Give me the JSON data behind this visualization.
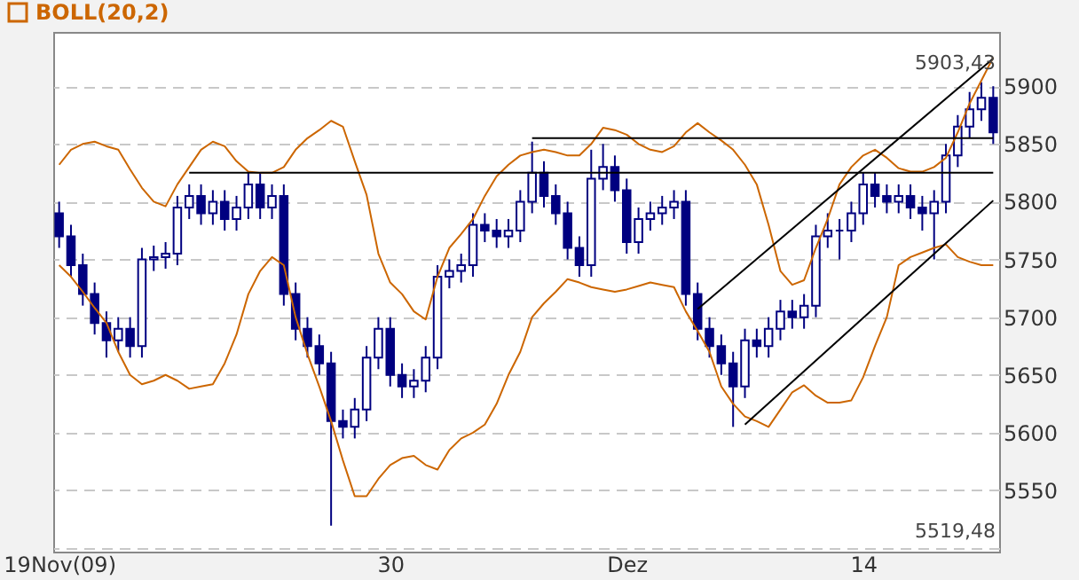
{
  "chart_data": {
    "type": "candlestick",
    "color": "#000080",
    "categories": [
      "19Nov(09)",
      null,
      null,
      null,
      null,
      null,
      null,
      null,
      null,
      null,
      null,
      null,
      null,
      null,
      null,
      null,
      null,
      null,
      null,
      null,
      null,
      null,
      null,
      null,
      null,
      null,
      null,
      null,
      "30",
      null,
      null,
      null,
      null,
      null,
      null,
      null,
      null,
      null,
      null,
      null,
      null,
      null,
      null,
      null,
      null,
      null,
      null,
      null,
      "Dez",
      null,
      null,
      null,
      null,
      null,
      null,
      null,
      null,
      null,
      null,
      null,
      null,
      null,
      null,
      null,
      null,
      null,
      null,
      null,
      "14",
      null,
      null,
      null,
      null,
      null,
      null,
      null,
      null,
      null,
      null,
      null
    ],
    "ohlc": [
      [
        5790,
        5800,
        5760,
        5770
      ],
      [
        5770,
        5780,
        5735,
        5745
      ],
      [
        5745,
        5755,
        5710,
        5720
      ],
      [
        5720,
        5730,
        5685,
        5695
      ],
      [
        5695,
        5705,
        5665,
        5680
      ],
      [
        5680,
        5700,
        5670,
        5690
      ],
      [
        5690,
        5700,
        5665,
        5675
      ],
      [
        5675,
        5760,
        5665,
        5750
      ],
      [
        5750,
        5762,
        5740,
        5752
      ],
      [
        5752,
        5765,
        5742,
        5755
      ],
      [
        5755,
        5805,
        5745,
        5795
      ],
      [
        5795,
        5815,
        5785,
        5805
      ],
      [
        5805,
        5815,
        5780,
        5790
      ],
      [
        5790,
        5810,
        5780,
        5800
      ],
      [
        5800,
        5810,
        5775,
        5785
      ],
      [
        5785,
        5805,
        5775,
        5795
      ],
      [
        5795,
        5826,
        5785,
        5815
      ],
      [
        5815,
        5825,
        5785,
        5795
      ],
      [
        5795,
        5815,
        5785,
        5805
      ],
      [
        5805,
        5815,
        5710,
        5720
      ],
      [
        5720,
        5730,
        5680,
        5690
      ],
      [
        5690,
        5700,
        5665,
        5675
      ],
      [
        5675,
        5685,
        5650,
        5660
      ],
      [
        5660,
        5670,
        5519.48,
        5610
      ],
      [
        5610,
        5620,
        5595,
        5605
      ],
      [
        5605,
        5630,
        5595,
        5620
      ],
      [
        5620,
        5675,
        5610,
        5665
      ],
      [
        5665,
        5700,
        5655,
        5690
      ],
      [
        5690,
        5700,
        5640,
        5650
      ],
      [
        5650,
        5660,
        5630,
        5640
      ],
      [
        5640,
        5655,
        5630,
        5645
      ],
      [
        5645,
        5675,
        5635,
        5665
      ],
      [
        5665,
        5745,
        5655,
        5735
      ],
      [
        5735,
        5750,
        5725,
        5740
      ],
      [
        5740,
        5755,
        5730,
        5745
      ],
      [
        5745,
        5790,
        5735,
        5780
      ],
      [
        5780,
        5790,
        5765,
        5775
      ],
      [
        5775,
        5785,
        5760,
        5770
      ],
      [
        5770,
        5785,
        5760,
        5775
      ],
      [
        5775,
        5810,
        5765,
        5800
      ],
      [
        5800,
        5852,
        5790,
        5825
      ],
      [
        5825,
        5835,
        5795,
        5805
      ],
      [
        5805,
        5815,
        5780,
        5790
      ],
      [
        5790,
        5800,
        5750,
        5760
      ],
      [
        5760,
        5770,
        5735,
        5745
      ],
      [
        5745,
        5845,
        5735,
        5820
      ],
      [
        5820,
        5850,
        5810,
        5830
      ],
      [
        5830,
        5840,
        5800,
        5810
      ],
      [
        5810,
        5820,
        5755,
        5765
      ],
      [
        5765,
        5795,
        5755,
        5785
      ],
      [
        5785,
        5800,
        5775,
        5790
      ],
      [
        5790,
        5805,
        5780,
        5795
      ],
      [
        5795,
        5810,
        5785,
        5800
      ],
      [
        5800,
        5810,
        5710,
        5720
      ],
      [
        5720,
        5730,
        5680,
        5690
      ],
      [
        5690,
        5700,
        5665,
        5675
      ],
      [
        5675,
        5685,
        5650,
        5660
      ],
      [
        5660,
        5670,
        5605,
        5640
      ],
      [
        5640,
        5690,
        5630,
        5680
      ],
      [
        5680,
        5690,
        5665,
        5675
      ],
      [
        5675,
        5700,
        5665,
        5690
      ],
      [
        5690,
        5715,
        5680,
        5705
      ],
      [
        5705,
        5715,
        5690,
        5700
      ],
      [
        5700,
        5720,
        5690,
        5710
      ],
      [
        5710,
        5780,
        5700,
        5770
      ],
      [
        5770,
        5790,
        5760,
        5775
      ],
      [
        5775,
        5785,
        5750,
        5775
      ],
      [
        5775,
        5800,
        5765,
        5790
      ],
      [
        5790,
        5825,
        5780,
        5815
      ],
      [
        5815,
        5825,
        5795,
        5805
      ],
      [
        5805,
        5815,
        5790,
        5800
      ],
      [
        5800,
        5815,
        5790,
        5805
      ],
      [
        5805,
        5815,
        5785,
        5795
      ],
      [
        5795,
        5805,
        5775,
        5790
      ],
      [
        5790,
        5810,
        5750,
        5800
      ],
      [
        5800,
        5850,
        5790,
        5840
      ],
      [
        5840,
        5875,
        5830,
        5865
      ],
      [
        5865,
        5895,
        5855,
        5880
      ],
      [
        5880,
        5903.43,
        5870,
        5890
      ],
      [
        5890,
        5900,
        5850,
        5860
      ]
    ],
    "series": [
      {
        "name": "BOLL(20,2)",
        "type": "line",
        "color": "#cc6600",
        "values": [
          5832,
          5845,
          5850,
          5852,
          5848,
          5845,
          5828,
          5812,
          5800,
          5796,
          5815,
          5830,
          5845,
          5852,
          5848,
          5835,
          5826,
          5825,
          5825,
          5830,
          5845,
          5855,
          5862,
          5870,
          5865,
          5835,
          5806,
          5755,
          5730,
          5720,
          5705,
          5698,
          5735,
          5760,
          5772,
          5785,
          5805,
          5822,
          5832,
          5840,
          5843,
          5845,
          5843,
          5840,
          5840,
          5850,
          5864,
          5862,
          5858,
          5850,
          5845,
          5843,
          5848,
          5860,
          5868,
          5860,
          5853,
          5845,
          5832,
          5815,
          5780,
          5740,
          5728,
          5732,
          5760,
          5785,
          5815,
          5830,
          5840,
          5845,
          5838,
          5829,
          5826,
          5826,
          5830,
          5838,
          5860,
          5885,
          5905,
          5925
        ]
      },
      {
        "type": "line",
        "color": "#cc6600",
        "values": [
          5745,
          5735,
          5722,
          5708,
          5695,
          5670,
          5650,
          5642,
          5645,
          5650,
          5645,
          5638,
          5640,
          5642,
          5660,
          5685,
          5720,
          5740,
          5752,
          5745,
          5700,
          5668,
          5640,
          5610,
          5576,
          5545,
          5545,
          5560,
          5572,
          5578,
          5580,
          5572,
          5568,
          5585,
          5595,
          5600,
          5607,
          5625,
          5650,
          5670,
          5700,
          5712,
          5722,
          5733,
          5730,
          5726,
          5724,
          5722,
          5724,
          5727,
          5730,
          5728,
          5726,
          5705,
          5688,
          5670,
          5640,
          5625,
          5614,
          5610,
          5605,
          5620,
          5635,
          5641,
          5632,
          5626,
          5626,
          5628,
          5648,
          5675,
          5700,
          5745,
          5752,
          5756,
          5760,
          5763,
          5752,
          5748,
          5745,
          5745
        ]
      },
      {
        "type": "line",
        "color": "#000000",
        "values": [
          null,
          null,
          null,
          null,
          null,
          null,
          null,
          null,
          null,
          null,
          null,
          5825,
          null,
          null,
          null,
          null,
          null,
          null,
          null,
          null,
          null,
          null,
          null,
          null,
          null,
          null,
          null,
          null,
          null,
          null,
          null,
          null,
          null,
          null,
          null,
          null,
          null,
          null,
          null,
          null,
          null,
          null,
          null,
          null,
          null,
          null,
          null,
          null,
          null,
          null,
          null,
          null,
          null,
          null,
          null,
          null,
          null,
          null,
          null,
          null,
          null,
          null,
          null,
          null,
          null,
          null,
          null,
          null,
          null,
          null,
          null,
          null,
          null,
          null,
          null,
          null,
          null,
          null,
          null,
          5825
        ]
      },
      {
        "type": "line",
        "color": "#000000",
        "values": [
          null,
          null,
          null,
          null,
          null,
          null,
          null,
          null,
          null,
          null,
          null,
          null,
          null,
          null,
          null,
          null,
          null,
          null,
          null,
          null,
          null,
          null,
          null,
          null,
          null,
          null,
          null,
          null,
          null,
          null,
          null,
          null,
          null,
          null,
          null,
          null,
          null,
          null,
          null,
          null,
          5855,
          null,
          null,
          null,
          null,
          null,
          null,
          null,
          null,
          null,
          null,
          null,
          null,
          null,
          null,
          null,
          null,
          null,
          null,
          null,
          null,
          null,
          null,
          null,
          null,
          null,
          null,
          null,
          null,
          null,
          null,
          null,
          null,
          null,
          null,
          null,
          null,
          null,
          null,
          5855
        ]
      },
      {
        "type": "line",
        "color": "#000000",
        "values": [
          null,
          null,
          null,
          null,
          null,
          null,
          null,
          null,
          null,
          null,
          null,
          null,
          null,
          null,
          null,
          null,
          null,
          null,
          null,
          null,
          null,
          null,
          null,
          null,
          null,
          null,
          null,
          null,
          null,
          null,
          null,
          null,
          null,
          null,
          null,
          null,
          null,
          null,
          null,
          null,
          null,
          null,
          null,
          null,
          null,
          null,
          null,
          null,
          null,
          null,
          null,
          null,
          null,
          null,
          5707,
          null,
          null,
          null,
          null,
          null,
          null,
          null,
          null,
          null,
          null,
          null,
          null,
          null,
          null,
          null,
          null,
          null,
          null,
          null,
          null,
          null,
          null,
          null,
          null,
          5924
        ]
      },
      {
        "type": "line",
        "color": "#000000",
        "values": [
          null,
          null,
          null,
          null,
          null,
          null,
          null,
          null,
          null,
          null,
          null,
          null,
          null,
          null,
          null,
          null,
          null,
          null,
          null,
          null,
          null,
          null,
          null,
          null,
          null,
          null,
          null,
          null,
          null,
          null,
          null,
          null,
          null,
          null,
          null,
          null,
          null,
          null,
          null,
          null,
          null,
          null,
          null,
          null,
          null,
          null,
          null,
          null,
          null,
          null,
          null,
          null,
          null,
          null,
          null,
          null,
          null,
          null,
          5607,
          null,
          null,
          null,
          null,
          null,
          null,
          null,
          null,
          null,
          null,
          null,
          null,
          null,
          null,
          null,
          null,
          null,
          null,
          null,
          null,
          5801
        ]
      }
    ],
    "ylim": [
      5497,
      5947
    ],
    "yticks": [
      {
        "value": 5500,
        "label": null
      },
      5550,
      5600,
      5650,
      5700,
      5750,
      5800,
      5850,
      5900
    ],
    "grid": "y",
    "legend": "top left",
    "annotations": [
      "5903,43",
      "5519,48"
    ]
  }
}
